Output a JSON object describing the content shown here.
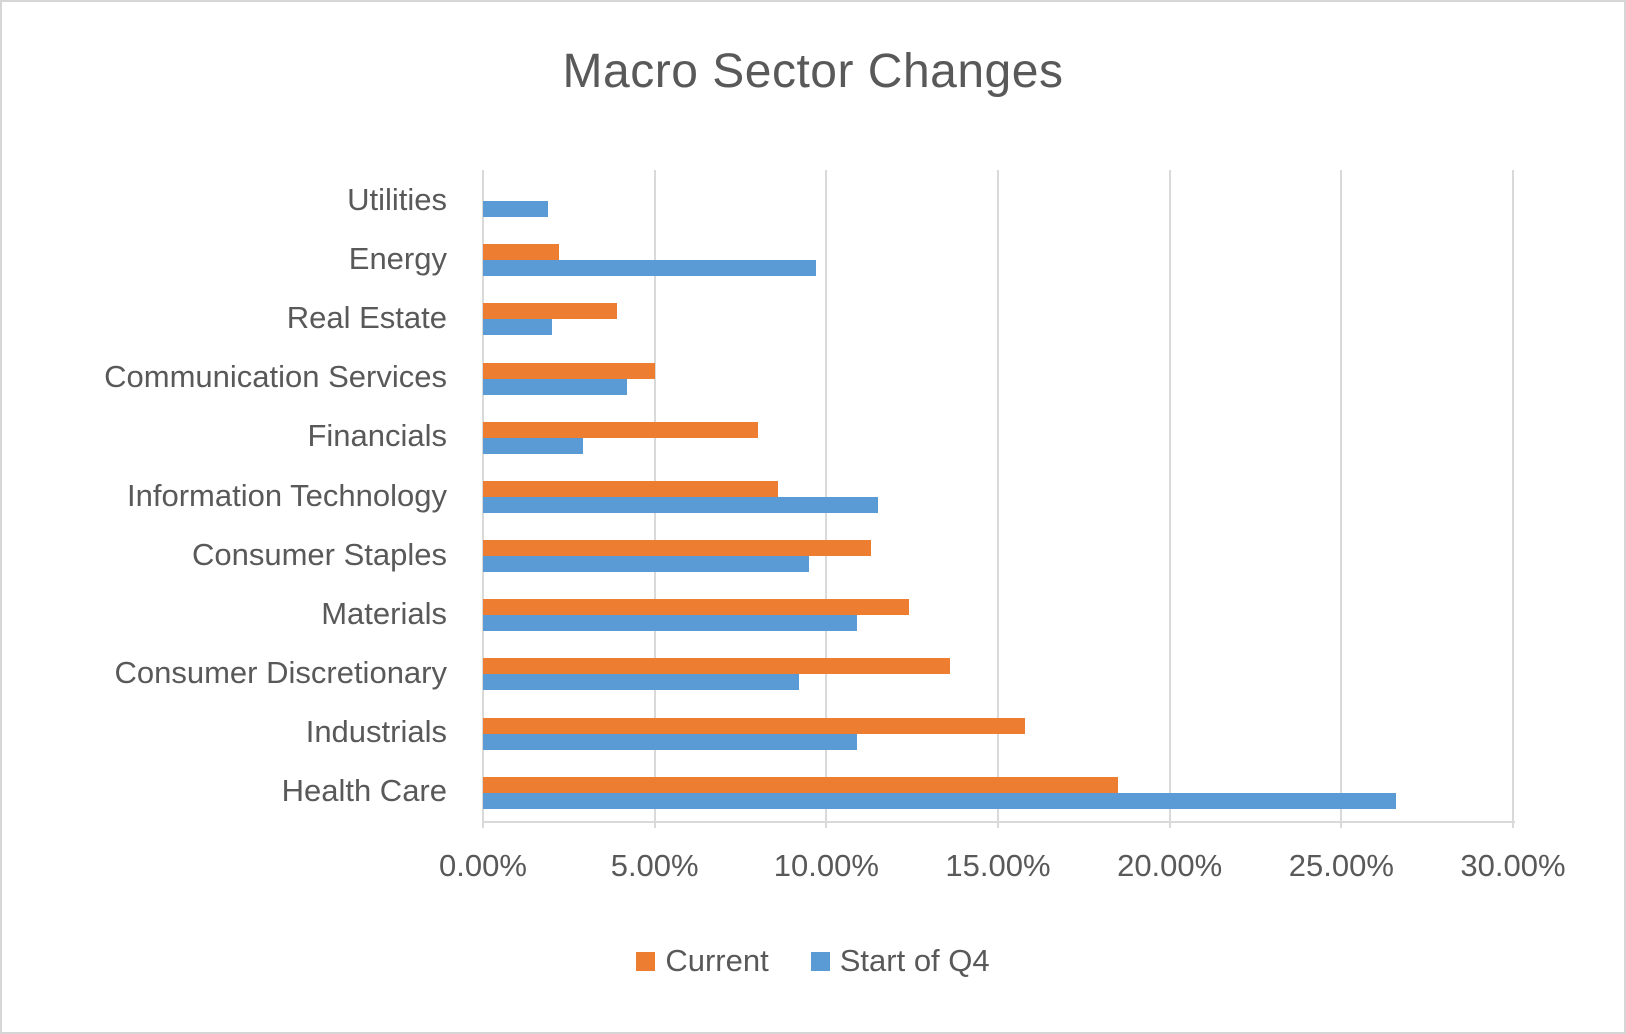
{
  "chart_data": {
    "type": "bar",
    "orientation": "horizontal",
    "title": "Macro Sector Changes",
    "categories": [
      "Utilities",
      "Energy",
      "Real Estate",
      "Communication Services",
      "Financials",
      "Information Technology",
      "Consumer Staples",
      "Materials",
      "Consumer Discretionary",
      "Industrials",
      "Health Care"
    ],
    "series": [
      {
        "name": "Current",
        "color": "#ED7D31",
        "values": [
          0.0,
          2.2,
          3.9,
          5.0,
          8.0,
          8.6,
          11.3,
          12.4,
          13.6,
          15.8,
          18.5
        ]
      },
      {
        "name": "Start of Q4",
        "color": "#5B9BD5",
        "values": [
          1.9,
          9.7,
          2.0,
          4.2,
          2.9,
          11.5,
          9.5,
          10.9,
          9.2,
          10.9,
          26.6
        ]
      }
    ],
    "x_axis": {
      "min": 0,
      "max": 30,
      "tick_step": 5,
      "ticks": [
        "0.00%",
        "5.00%",
        "10.00%",
        "15.00%",
        "20.00%",
        "25.00%",
        "30.00%"
      ],
      "unit": "%"
    },
    "legend_position": "bottom",
    "grid": true,
    "colors": {
      "text": "#595959",
      "gridline": "#D9D9D9",
      "series_current": "#ED7D31",
      "series_start_q4": "#5B9BD5"
    }
  }
}
